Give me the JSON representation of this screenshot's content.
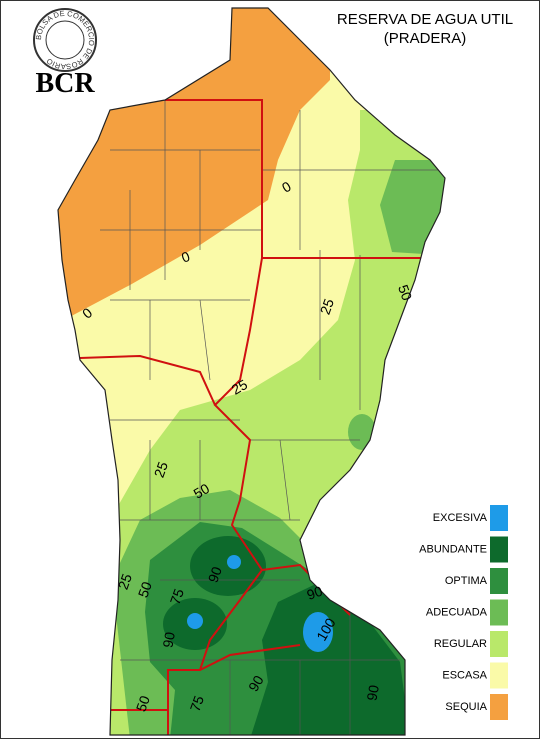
{
  "header": {
    "title": [
      "RESERVA DE AGUA UTIL",
      "(PRADERA)"
    ],
    "logo": "BCR",
    "logo_ring": "BOLSA DE COMERCIO DE ROSARIO"
  },
  "legend": [
    {
      "label": "EXCESIVA",
      "color": "#1e9be8"
    },
    {
      "label": "ABUNDANTE",
      "color": "#0d6a2c"
    },
    {
      "label": "OPTIMA",
      "color": "#2e8f3e"
    },
    {
      "label": "ADECUADA",
      "color": "#6cbc55"
    },
    {
      "label": "REGULAR",
      "color": "#b9e86a"
    },
    {
      "label": "ESCASA",
      "color": "#fafaa8"
    },
    {
      "label": "SEQUIA",
      "color": "#f4a040"
    }
  ],
  "contour_labels": [
    "0",
    "0",
    "0",
    "25",
    "50",
    "25",
    "25",
    "50",
    "90",
    "25",
    "50",
    "75",
    "90",
    "90",
    "100",
    "90",
    "50",
    "75",
    "90"
  ]
}
